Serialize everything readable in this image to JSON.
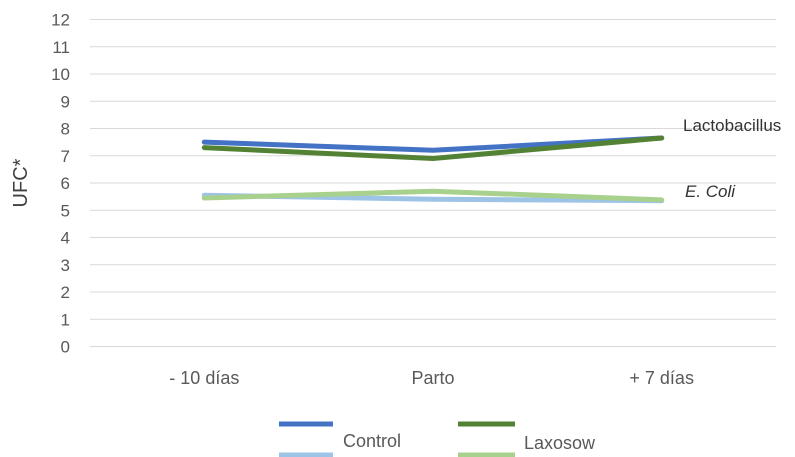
{
  "chart_data": {
    "type": "line",
    "ylabel": "UFC*",
    "ylim": [
      0,
      12
    ],
    "yticks": [
      0,
      1,
      2,
      3,
      4,
      5,
      6,
      7,
      8,
      9,
      10,
      11,
      12
    ],
    "categories": [
      "- 10 días",
      "Parto",
      "+ 7 días"
    ],
    "grid": true,
    "series": [
      {
        "name": "Control",
        "group": "Lactobacillus",
        "color": "#4472c4",
        "values": [
          7.5,
          7.2,
          7.65
        ]
      },
      {
        "name": "Laxosow",
        "group": "Lactobacillus",
        "color": "#548235",
        "values": [
          7.3,
          6.9,
          7.65
        ]
      },
      {
        "name": "Control",
        "group": "E. Coli",
        "color": "#9dc3e6",
        "values": [
          5.55,
          5.4,
          5.35
        ]
      },
      {
        "name": "Laxosow",
        "group": "E. Coli",
        "color": "#a9d18e",
        "values": [
          5.45,
          5.7,
          5.38
        ]
      }
    ],
    "annotations": [
      "Lactobacillus",
      "E. Coli"
    ],
    "legend": {
      "position": "bottom",
      "entries": [
        {
          "label": "Control",
          "colors": [
            "#4472c4",
            "#9dc3e6"
          ]
        },
        {
          "label": "Laxosow",
          "colors": [
            "#548235",
            "#a9d18e"
          ]
        }
      ]
    }
  }
}
